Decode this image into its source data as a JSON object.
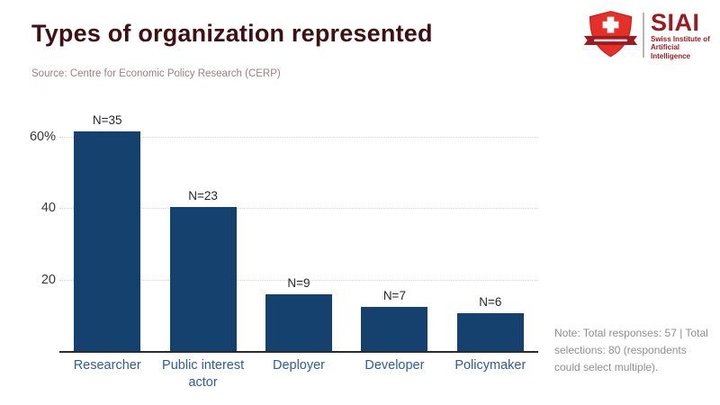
{
  "header": {
    "title": "Types of organization represented",
    "source": "Source: Centre for Economic Policy Research (CERP)"
  },
  "logo": {
    "acronym": "SIAI",
    "name_line1": "Swiss Institute of",
    "name_line2": "Artificial Intelligence",
    "shield_color": "#e53028",
    "banner_color": "#9c1b20",
    "text_color": "#9c1b20"
  },
  "note": {
    "text": "Note: Total responses: 57 | Total selections: 80 (respondents could select multiple)."
  },
  "chart_data": {
    "type": "bar",
    "title": "Types of organization represented",
    "categories": [
      "Researcher",
      "Public interest actor",
      "Deployer",
      "Developer",
      "Policymaker"
    ],
    "counts": [
      35,
      23,
      9,
      7,
      6
    ],
    "values_percent": [
      61.4,
      40.4,
      15.8,
      12.3,
      10.5
    ],
    "bar_labels": [
      "N=35",
      "N=23",
      "N=9",
      "N=7",
      "N=6"
    ],
    "xlabel": "",
    "ylabel": "",
    "yticks": [
      20,
      40,
      60
    ],
    "ytick_labels": [
      "20",
      "40",
      "60%"
    ],
    "ylim": [
      0,
      63
    ],
    "grid": "horizontal dotted",
    "legend": "none",
    "bar_color": "#15416f",
    "total_responses": 57,
    "total_selections": 80
  }
}
